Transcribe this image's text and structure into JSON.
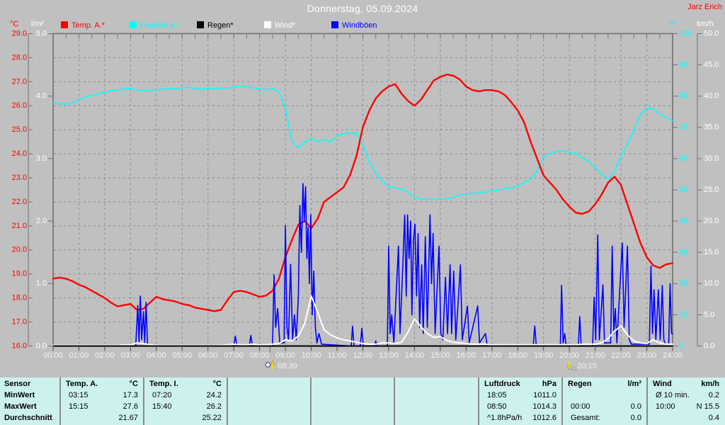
{
  "header": {
    "title": "Donnerstag, 05.09.2024",
    "author": "Jarz Erich"
  },
  "legend": {
    "items": [
      {
        "label": "Temp. A.*",
        "color": "#ff0000"
      },
      {
        "label": "Feuchte A.*",
        "color": "#00ffff"
      },
      {
        "label": "Regen*",
        "color": "#000000"
      },
      {
        "label": "Wind*",
        "color": "#ffffff"
      },
      {
        "label": "Windböen",
        "color": "#0000ff"
      }
    ]
  },
  "axes": {
    "temp": {
      "unit": "°C",
      "color": "#ff0000",
      "min": 16,
      "max": 29,
      "step": 1,
      "decimals": 1
    },
    "rain": {
      "unit": "l/m²",
      "color": "#ffffff",
      "min": 0,
      "max": 5,
      "step": 1,
      "decimals": 1
    },
    "humidity": {
      "unit": "%",
      "color": "#00ffff",
      "min": 0,
      "max": 100,
      "step": 10,
      "decimals": 0
    },
    "wind": {
      "unit": "km/h",
      "color": "#ffffff",
      "min": 0,
      "max": 50,
      "step": 5,
      "decimals": 1
    },
    "x_labels": [
      "00:00",
      "01:00",
      "02:00",
      "03:00",
      "04:00",
      "05:00",
      "06:00",
      "07:00",
      "08:00",
      "09:00",
      "10:00",
      "11:00",
      "12:00",
      "13:00",
      "14:00",
      "15:00",
      "16:00",
      "17:00",
      "18:00",
      "19:00",
      "20:00",
      "21:00",
      "22:00",
      "23:00",
      "24:00"
    ]
  },
  "markers": {
    "sunrise": {
      "label": "08:39",
      "hour": 8.65
    },
    "sunset": {
      "label": "20:15",
      "hour": 20.25
    }
  },
  "chart_data": {
    "type": "line",
    "title": "Donnerstag, 05.09.2024",
    "x_range_hours": [
      0,
      24
    ],
    "grid": "on",
    "series": [
      {
        "name": "Regen",
        "color": "#000000",
        "axis": "rain",
        "unit": "l/m²",
        "width": 1.5,
        "points": [
          [
            0,
            0
          ],
          [
            24,
            0
          ]
        ]
      },
      {
        "name": "Feuchte A.",
        "color": "#00ffff",
        "axis": "humidity",
        "unit": "%",
        "width": 1.6,
        "step_h": 0.25,
        "values": [
          78,
          77.6,
          77.4,
          77.8,
          79,
          79.6,
          80.2,
          80.7,
          81.3,
          81.7,
          82,
          82.3,
          82.4,
          82,
          81.6,
          81.8,
          82,
          82.2,
          82.4,
          82.3,
          82.7,
          82.8,
          82.4,
          82.2,
          82.5,
          82.3,
          82.6,
          82.5,
          82.9,
          83.2,
          83,
          82.6,
          82.3,
          82,
          82.4,
          81.4,
          76,
          65.5,
          63.5,
          65.3,
          66.5,
          65.4,
          66.1,
          65.4,
          67.3,
          68,
          68.1,
          68,
          64.3,
          59,
          55.2,
          52.8,
          51.1,
          50.6,
          50.2,
          49.3,
          47.7,
          47.1,
          46.9,
          46.9,
          47,
          47.1,
          47.5,
          48.4,
          48.7,
          48.8,
          49,
          49.3,
          49.6,
          50,
          50.3,
          50.7,
          51.1,
          52.3,
          53.5,
          56,
          60.5,
          61.5,
          62.4,
          62.4,
          62,
          61.6,
          60.2,
          59,
          57.1,
          55,
          53.4,
          56,
          61,
          64.7,
          69,
          74,
          76.1,
          76,
          74.2,
          73.3,
          72.2
        ]
      },
      {
        "name": "Temp. A.",
        "color": "#ff0000",
        "axis": "temp",
        "unit": "°C",
        "width": 2.4,
        "step_h": 0.25,
        "values": [
          18.8,
          18.85,
          18.8,
          18.7,
          18.55,
          18.45,
          18.3,
          18.15,
          18.0,
          17.8,
          17.65,
          17.7,
          17.75,
          17.5,
          17.55,
          17.8,
          18.05,
          17.95,
          17.9,
          17.85,
          17.75,
          17.7,
          17.6,
          17.55,
          17.5,
          17.45,
          17.5,
          17.9,
          18.25,
          18.3,
          18.25,
          18.15,
          18.05,
          18.1,
          18.3,
          18.8,
          19.7,
          20.4,
          21.05,
          21.2,
          20.9,
          21.3,
          22.0,
          22.2,
          22.4,
          22.6,
          23.1,
          23.9,
          25.1,
          25.8,
          26.3,
          26.6,
          26.8,
          26.9,
          26.5,
          26.2,
          26.0,
          26.25,
          26.65,
          27.05,
          27.2,
          27.3,
          27.25,
          27.1,
          26.8,
          26.65,
          26.6,
          26.65,
          26.65,
          26.6,
          26.45,
          26.15,
          25.8,
          25.3,
          24.5,
          23.8,
          23.1,
          22.8,
          22.5,
          22.1,
          21.8,
          21.55,
          21.5,
          21.6,
          21.9,
          22.3,
          22.8,
          23.05,
          22.7,
          21.9,
          21.1,
          20.3,
          19.7,
          19.35,
          19.25,
          19.4,
          19.45
        ]
      },
      {
        "name": "Windböen",
        "color": "#0000ff",
        "axis": "wind",
        "unit": "km/h",
        "width": 1.6,
        "points": [
          [
            0,
            0
          ],
          [
            3.2,
            0
          ],
          [
            3.28,
            6.5
          ],
          [
            3.33,
            0.5
          ],
          [
            3.38,
            8
          ],
          [
            3.43,
            1
          ],
          [
            3.5,
            5.5
          ],
          [
            3.55,
            0.5
          ],
          [
            3.6,
            7
          ],
          [
            3.66,
            0
          ],
          [
            7.0,
            0
          ],
          [
            7.06,
            1.6
          ],
          [
            7.12,
            0
          ],
          [
            7.6,
            0
          ],
          [
            7.66,
            1.7
          ],
          [
            7.72,
            0
          ],
          [
            8.5,
            0
          ],
          [
            8.56,
            11.4
          ],
          [
            8.62,
            3
          ],
          [
            8.7,
            6
          ],
          [
            8.78,
            0.5
          ],
          [
            8.95,
            0.5
          ],
          [
            9.0,
            19.3
          ],
          [
            9.06,
            3
          ],
          [
            9.12,
            1
          ],
          [
            9.2,
            13.1
          ],
          [
            9.28,
            1
          ],
          [
            9.35,
            5
          ],
          [
            9.42,
            1
          ],
          [
            9.5,
            8
          ],
          [
            9.56,
            22.5
          ],
          [
            9.62,
            15
          ],
          [
            9.68,
            26
          ],
          [
            9.73,
            20
          ],
          [
            9.78,
            25.5
          ],
          [
            9.83,
            14
          ],
          [
            9.88,
            19
          ],
          [
            9.93,
            10
          ],
          [
            9.98,
            21
          ],
          [
            10.04,
            5
          ],
          [
            10.1,
            12
          ],
          [
            10.16,
            3
          ],
          [
            10.22,
            0.5
          ],
          [
            10.3,
            2
          ],
          [
            10.4,
            0.3
          ],
          [
            11.55,
            0
          ],
          [
            11.6,
            3.2
          ],
          [
            11.66,
            0
          ],
          [
            11.9,
            0
          ],
          [
            11.96,
            2.8
          ],
          [
            12.02,
            0
          ],
          [
            12.45,
            0
          ],
          [
            12.5,
            0.8
          ],
          [
            12.56,
            0
          ],
          [
            12.95,
            0
          ],
          [
            13.0,
            16
          ],
          [
            13.06,
            2
          ],
          [
            13.12,
            5
          ],
          [
            13.2,
            0.5
          ],
          [
            13.38,
            16
          ],
          [
            13.44,
            2
          ],
          [
            13.55,
            13
          ],
          [
            13.62,
            21
          ],
          [
            13.68,
            8
          ],
          [
            13.73,
            21
          ],
          [
            13.79,
            14
          ],
          [
            13.85,
            20
          ],
          [
            13.9,
            5
          ],
          [
            13.96,
            17
          ],
          [
            14.02,
            19.5
          ],
          [
            14.08,
            8
          ],
          [
            14.14,
            18
          ],
          [
            14.2,
            3
          ],
          [
            14.28,
            13
          ],
          [
            14.34,
            2
          ],
          [
            14.42,
            17.5
          ],
          [
            14.5,
            3
          ],
          [
            14.6,
            21
          ],
          [
            14.66,
            10
          ],
          [
            14.72,
            18
          ],
          [
            14.8,
            2
          ],
          [
            14.95,
            16
          ],
          [
            15.02,
            2
          ],
          [
            15.1,
            1
          ],
          [
            15.2,
            11
          ],
          [
            15.28,
            2
          ],
          [
            15.38,
            13
          ],
          [
            15.44,
            2
          ],
          [
            15.52,
            12
          ],
          [
            15.6,
            1
          ],
          [
            15.78,
            13
          ],
          [
            15.85,
            1
          ],
          [
            16.05,
            6.4
          ],
          [
            16.12,
            0.5
          ],
          [
            16.45,
            6.4
          ],
          [
            16.52,
            0.5
          ],
          [
            16.75,
            2
          ],
          [
            16.82,
            0
          ],
          [
            18.6,
            0
          ],
          [
            18.66,
            3.2
          ],
          [
            18.72,
            0
          ],
          [
            19.65,
            0
          ],
          [
            19.7,
            9.7
          ],
          [
            19.76,
            0.5
          ],
          [
            19.82,
            2
          ],
          [
            19.88,
            0
          ],
          [
            20.35,
            0
          ],
          [
            20.4,
            4.7
          ],
          [
            20.46,
            0
          ],
          [
            20.9,
            0
          ],
          [
            20.96,
            7.8
          ],
          [
            21.02,
            1
          ],
          [
            21.1,
            17.8
          ],
          [
            21.16,
            1
          ],
          [
            21.3,
            9.8
          ],
          [
            21.36,
            0.5
          ],
          [
            21.6,
            0.5
          ],
          [
            21.66,
            16
          ],
          [
            21.72,
            2
          ],
          [
            21.78,
            6
          ],
          [
            21.84,
            0.5
          ],
          [
            22.05,
            16.5
          ],
          [
            22.12,
            3
          ],
          [
            22.25,
            16
          ],
          [
            22.32,
            1
          ],
          [
            22.4,
            0.3
          ],
          [
            23.1,
            0.3
          ],
          [
            23.16,
            12.8
          ],
          [
            23.22,
            2
          ],
          [
            23.28,
            9
          ],
          [
            23.35,
            1
          ],
          [
            23.45,
            9
          ],
          [
            23.52,
            1
          ],
          [
            23.6,
            9.7
          ],
          [
            23.66,
            1
          ],
          [
            23.72,
            0.3
          ],
          [
            23.85,
            0.3
          ],
          [
            23.9,
            10
          ],
          [
            23.96,
            2
          ],
          [
            24,
            2
          ]
        ]
      },
      {
        "name": "Wind",
        "color": "#ffffff",
        "axis": "wind",
        "unit": "km/h",
        "width": 2.0,
        "step_h": 0.25,
        "values": [
          0.1,
          0.1,
          0.1,
          0.1,
          0.1,
          0.1,
          0.1,
          0.1,
          0.1,
          0.1,
          0.1,
          0.2,
          0.2,
          0.5,
          0.4,
          0.2,
          0.1,
          0.1,
          0.1,
          0.1,
          0.1,
          0.1,
          0.1,
          0.1,
          0.1,
          0.1,
          0.1,
          0.2,
          0.3,
          0.2,
          0.2,
          0.3,
          0.2,
          0.2,
          0.3,
          0.4,
          1.0,
          0.8,
          1.6,
          3.6,
          8.0,
          5.4,
          2.6,
          1.8,
          1.3,
          1.0,
          0.8,
          0.6,
          0.4,
          0.3,
          0.3,
          0.5,
          0.5,
          0.4,
          0.6,
          2.2,
          4.4,
          3.1,
          2.0,
          1.4,
          1.5,
          0.9,
          0.6,
          0.5,
          0.4,
          0.3,
          0.3,
          0.3,
          0.2,
          0.2,
          0.2,
          0.2,
          0.2,
          0.2,
          0.2,
          0.2,
          0.2,
          0.2,
          0.2,
          0.2,
          0.2,
          0.2,
          0.3,
          0.3,
          0.3,
          0.5,
          1.2,
          2.4,
          3.2,
          1.8,
          0.8,
          0.5,
          0.4,
          1.0,
          0.5,
          0.3,
          0.3
        ]
      }
    ]
  },
  "table": {
    "row_labels": [
      "Sensor",
      "MinWert",
      "MaxWert",
      "Durchschnitt"
    ],
    "columns": [
      {
        "name": "Temp. A.",
        "unit": "°C",
        "rows": [
          [
            "03:15",
            "17.3"
          ],
          [
            "15:15",
            "27.6"
          ],
          [
            "",
            "21.67"
          ]
        ]
      },
      {
        "name": "Temp. I.",
        "unit": "°C",
        "rows": [
          [
            "07:20",
            "24.2"
          ],
          [
            "15:40",
            "26.2"
          ],
          [
            "",
            "25.22"
          ]
        ]
      },
      {
        "name": "",
        "unit": "",
        "rows": [
          [
            "",
            ""
          ],
          [
            "",
            ""
          ],
          [
            "",
            ""
          ]
        ]
      },
      {
        "name": "",
        "unit": "",
        "rows": [
          [
            "",
            ""
          ],
          [
            "",
            ""
          ],
          [
            "",
            ""
          ]
        ]
      },
      {
        "name": "",
        "unit": "",
        "rows": [
          [
            "",
            ""
          ],
          [
            "",
            ""
          ],
          [
            "",
            ""
          ]
        ]
      },
      {
        "name": "Luftdruck",
        "unit": "hPa",
        "rows": [
          [
            "18:05",
            "1011.0"
          ],
          [
            "08:50",
            "1014.3"
          ],
          [
            "^1.8hPa/h",
            "1012.6"
          ]
        ]
      },
      {
        "name": "Regen",
        "unit": "l/m²",
        "rows": [
          [
            "",
            ""
          ],
          [
            "00:00",
            "0.0"
          ],
          [
            "Gesamt:",
            "0.0"
          ]
        ]
      },
      {
        "name": "Wind",
        "unit": "km/h",
        "rows": [
          [
            "Ø 10 min.",
            "0.2"
          ],
          [
            "10:00",
            "N 15.5"
          ],
          [
            "",
            "0.4"
          ]
        ]
      }
    ]
  }
}
